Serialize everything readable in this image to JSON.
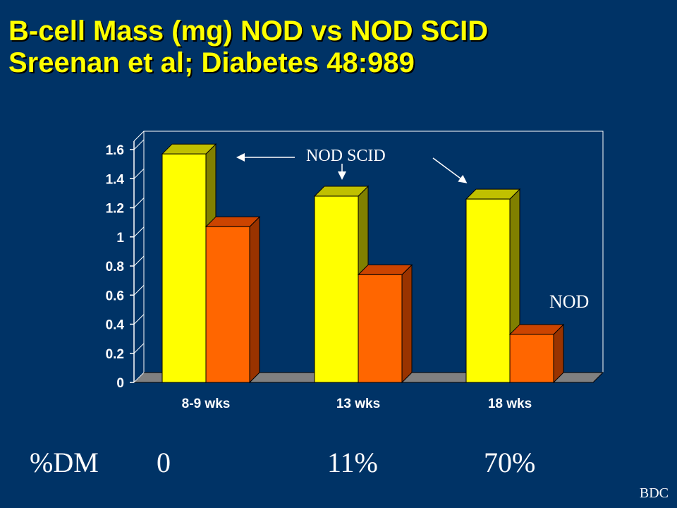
{
  "slide": {
    "title_line1": "B-cell Mass (mg) NOD vs NOD SCID",
    "title_line2": "Sreenan et al; Diabetes 48:989",
    "footer": "BDC"
  },
  "dm_row": {
    "label": "%DM",
    "values": [
      "0",
      "11%",
      "70%"
    ]
  },
  "chart_data": {
    "type": "bar",
    "categories": [
      "8-9 wks",
      "13 wks",
      "18 wks"
    ],
    "series": [
      {
        "name": "NOD SCID",
        "values": [
          1.57,
          1.28,
          1.26
        ],
        "color": "#ffff00"
      },
      {
        "name": "NOD",
        "values": [
          1.07,
          0.74,
          0.33
        ],
        "color": "#ff6600"
      }
    ],
    "ylim": [
      0,
      1.6
    ],
    "yticks": [
      "0",
      "0.2",
      "0.4",
      "0.6",
      "0.8",
      "1",
      "1.2",
      "1.4",
      "1.6"
    ],
    "grid": false,
    "annotations": [
      {
        "text": "NOD SCID",
        "series": "NOD SCID"
      },
      {
        "text": "NOD",
        "series": "NOD"
      }
    ],
    "colors": {
      "background": "#003366",
      "plot_floor": "#808080",
      "axis_text": "#ffffff",
      "scid_side": "#808000",
      "scid_top": "#c0c000",
      "nod_side": "#993300",
      "nod_top": "#cc4400"
    }
  }
}
